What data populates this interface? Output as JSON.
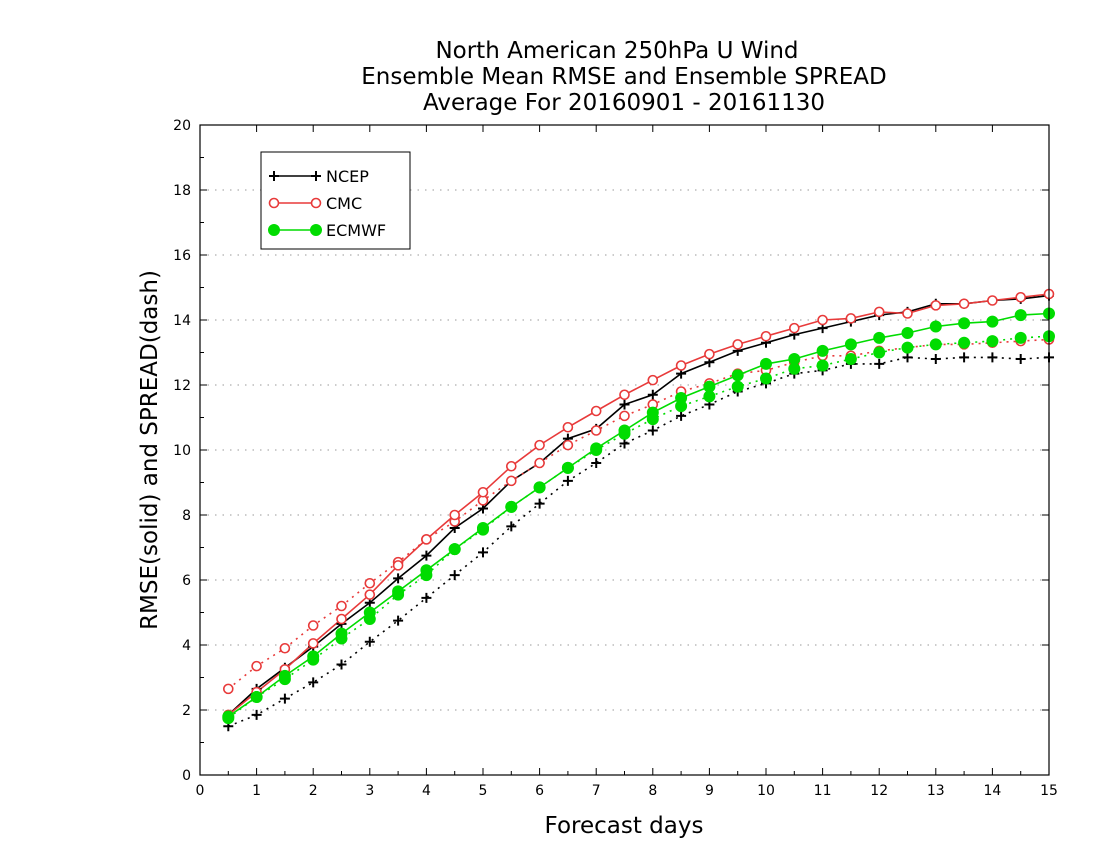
{
  "chart_data": {
    "type": "line",
    "title_lines": [
      "North American 250hPa U Wind",
      "Ensemble Mean RMSE and Ensemble SPREAD",
      "Average For 20160901 - 20161130"
    ],
    "xlabel": "Forecast days",
    "ylabel": "RMSE(solid) and SPREAD(dash)",
    "xlim": [
      0,
      15
    ],
    "ylim": [
      0,
      20
    ],
    "x_ticks": [
      "0",
      "1",
      "2",
      "3",
      "4",
      "5",
      "6",
      "7",
      "8",
      "9",
      "10",
      "11",
      "12",
      "13",
      "14",
      "15"
    ],
    "y_ticks": [
      "0",
      "2",
      "4",
      "6",
      "8",
      "10",
      "12",
      "14",
      "16",
      "18",
      "20"
    ],
    "grid": "horizontal dotted",
    "legend_position": "top-left",
    "x": [
      0.5,
      1,
      1.5,
      2,
      2.5,
      3,
      3.5,
      4,
      4.5,
      5,
      5.5,
      6,
      6.5,
      7,
      7.5,
      8,
      8.5,
      9,
      9.5,
      10,
      10.5,
      11,
      11.5,
      12,
      12.5,
      13,
      13.5,
      14,
      14.5,
      15
    ],
    "series": [
      {
        "name": "NCEP",
        "color": "#000000",
        "marker": "plus",
        "rmse": [
          1.85,
          2.65,
          3.3,
          3.95,
          4.65,
          5.3,
          6.05,
          6.75,
          7.6,
          8.2,
          9.05,
          9.6,
          10.35,
          10.65,
          11.4,
          11.7,
          12.35,
          12.7,
          13.05,
          13.3,
          13.55,
          13.75,
          13.95,
          14.15,
          14.25,
          14.5,
          14.5,
          14.6,
          14.65,
          14.75
        ],
        "spread": [
          1.5,
          1.85,
          2.35,
          2.85,
          3.4,
          4.1,
          4.75,
          5.45,
          6.15,
          6.85,
          7.65,
          8.35,
          9.05,
          9.6,
          10.2,
          10.6,
          11.05,
          11.4,
          11.8,
          12.05,
          12.35,
          12.45,
          12.65,
          12.65,
          12.85,
          12.8,
          12.85,
          12.85,
          12.8,
          12.85
        ]
      },
      {
        "name": "CMC",
        "color": "#e83a3a",
        "marker": "open-circle",
        "rmse": [
          1.85,
          2.55,
          3.25,
          4.05,
          4.8,
          5.55,
          6.45,
          7.25,
          8.0,
          8.7,
          9.5,
          10.15,
          10.7,
          11.2,
          11.7,
          12.15,
          12.6,
          12.95,
          13.25,
          13.5,
          13.75,
          14.0,
          14.05,
          14.25,
          14.2,
          14.45,
          14.5,
          14.6,
          14.7,
          14.8
        ],
        "spread": [
          2.65,
          3.35,
          3.9,
          4.6,
          5.2,
          5.9,
          6.55,
          7.25,
          7.8,
          8.45,
          9.05,
          9.6,
          10.15,
          10.6,
          11.05,
          11.4,
          11.8,
          12.05,
          12.35,
          12.45,
          12.7,
          12.9,
          12.9,
          13.05,
          13.15,
          13.25,
          13.25,
          13.3,
          13.35,
          13.4
        ]
      },
      {
        "name": "ECMWF",
        "color": "#00dc00",
        "marker": "filled-circle",
        "rmse": [
          1.8,
          2.4,
          3.05,
          3.65,
          4.35,
          5.0,
          5.65,
          6.3,
          6.95,
          7.6,
          8.25,
          8.85,
          9.45,
          10.05,
          10.6,
          11.15,
          11.6,
          11.95,
          12.3,
          12.65,
          12.8,
          13.05,
          13.25,
          13.45,
          13.6,
          13.8,
          13.9,
          13.95,
          14.15,
          14.2
        ],
        "spread": [
          1.75,
          2.4,
          2.95,
          3.55,
          4.2,
          4.8,
          5.55,
          6.15,
          6.95,
          7.55,
          8.25,
          8.85,
          9.45,
          10.0,
          10.5,
          10.95,
          11.35,
          11.65,
          11.95,
          12.2,
          12.5,
          12.6,
          12.8,
          13.0,
          13.15,
          13.25,
          13.3,
          13.35,
          13.45,
          13.5
        ]
      }
    ]
  }
}
